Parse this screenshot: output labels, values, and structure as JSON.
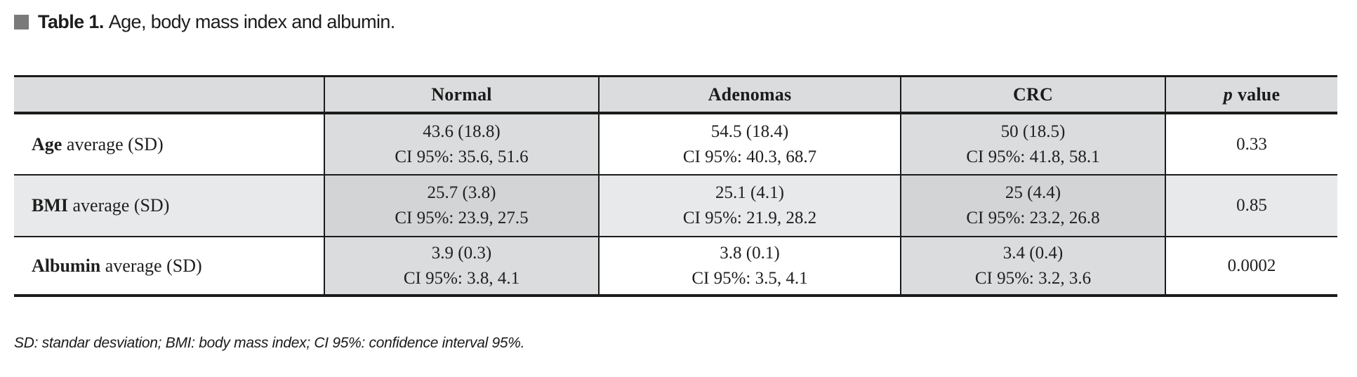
{
  "title": {
    "label": "Table 1.",
    "text": "Age, body mass index and albumin."
  },
  "table": {
    "header": {
      "col0": "",
      "col1": "Normal",
      "col2": "Adenomas",
      "col3": "CRC",
      "col4_italic": "p",
      "col4_rest": "value"
    },
    "rows": [
      {
        "label_bold": "Age",
        "label_rest": " average (SD)",
        "normal_line1": "43.6 (18.8)",
        "normal_line2": "CI 95%: 35.6, 51.6",
        "adenomas_line1": "54.5 (18.4)",
        "adenomas_line2": "CI 95%: 40.3, 68.7",
        "crc_line1": "50 (18.5)",
        "crc_line2": "CI 95%: 41.8, 58.1",
        "p_value": "0.33"
      },
      {
        "label_bold": "BMI",
        "label_rest": " average (SD)",
        "normal_line1": "25.7 (3.8)",
        "normal_line2": "CI 95%: 23.9, 27.5",
        "adenomas_line1": "25.1 (4.1)",
        "adenomas_line2": "CI 95%: 21.9, 28.2",
        "crc_line1": "25 (4.4)",
        "crc_line2": "CI 95%: 23.2, 26.8",
        "p_value": "0.85"
      },
      {
        "label_bold": "Albumin",
        "label_rest": " average (SD)",
        "normal_line1": "3.9 (0.3)",
        "normal_line2": "CI 95%: 3.8, 4.1",
        "adenomas_line1": "3.8 (0.1)",
        "adenomas_line2": "CI 95%: 3.5, 4.1",
        "crc_line1": "3.4 (0.4)",
        "crc_line2": "CI 95%: 3.2, 3.6",
        "p_value": "0.0002"
      }
    ]
  },
  "footnote": "SD: standar desviation; BMI: body mass index; CI 95%: confidence interval 95%.",
  "colors": {
    "column_shade_gray": "#dbdcdd",
    "alt_row_gray": "#e8e9ea",
    "alt_row_shaded_cell_gray": "#d2d4d5",
    "border_black": "#1b1b1b",
    "caption_square_gray": "#7a7a7a"
  }
}
